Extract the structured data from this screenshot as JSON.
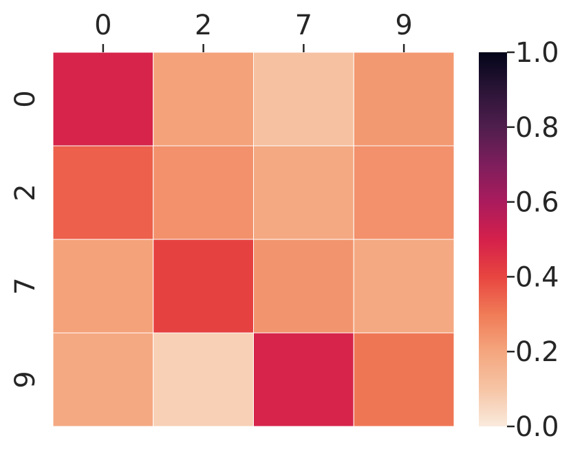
{
  "chart_data": {
    "type": "heatmap",
    "title": "",
    "xlabel": "",
    "ylabel": "",
    "x_categories": [
      "0",
      "2",
      "7",
      "9"
    ],
    "y_categories": [
      "0",
      "2",
      "7",
      "9"
    ],
    "values": [
      [
        0.49,
        0.21,
        0.11,
        0.23
      ],
      [
        0.35,
        0.25,
        0.19,
        0.25
      ],
      [
        0.21,
        0.41,
        0.24,
        0.19
      ],
      [
        0.19,
        0.07,
        0.49,
        0.31
      ]
    ],
    "colormap": "rocket_r",
    "vmin": 0.0,
    "vmax": 1.0,
    "colorbar_ticks": [
      "0.0",
      "0.2",
      "0.4",
      "0.6",
      "0.8",
      "1.0"
    ],
    "x_axis_position": "top",
    "grid": false,
    "colorbar_stops": [
      [
        0.0,
        "#faebdd"
      ],
      [
        0.1,
        "#f6c4a5"
      ],
      [
        0.2,
        "#f4a67e"
      ],
      [
        0.3,
        "#f07b57"
      ],
      [
        0.4,
        "#e84540"
      ],
      [
        0.5,
        "#d4204b"
      ],
      [
        0.6,
        "#aa1b5d"
      ],
      [
        0.7,
        "#7e1e5c"
      ],
      [
        0.8,
        "#4f1e4d"
      ],
      [
        0.9,
        "#2a1436"
      ],
      [
        1.0,
        "#03051a"
      ]
    ]
  }
}
